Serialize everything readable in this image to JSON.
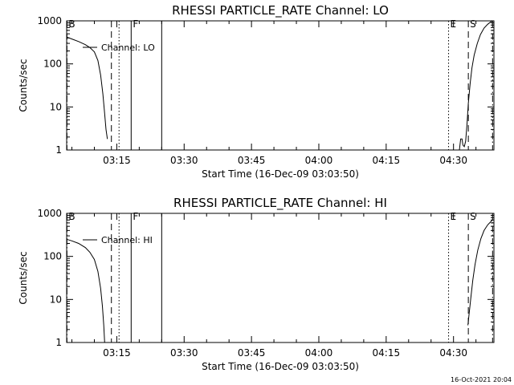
{
  "footer": {
    "timestamp": "16-Oct-2021 20:04"
  },
  "chart_data": [
    {
      "type": "line",
      "title": "RHESSI PARTICLE_RATE Channel: LO",
      "xlabel": "Start Time (16-Dec-09 03:03:50)",
      "ylabel": "Counts/sec",
      "yscale": "log",
      "ylim": [
        1,
        1000
      ],
      "xlim_minutes": [
        3.833,
        99.0
      ],
      "x_ticks": [
        {
          "label": "03:15",
          "minute": 15
        },
        {
          "label": "03:30",
          "minute": 30
        },
        {
          "label": "03:45",
          "minute": 45
        },
        {
          "label": "04:00",
          "minute": 60
        },
        {
          "label": "04:15",
          "minute": 75
        },
        {
          "label": "04:30",
          "minute": 90
        }
      ],
      "y_ticks": [
        {
          "label": "1",
          "value": 1
        },
        {
          "label": "10",
          "value": 10
        },
        {
          "label": "100",
          "value": 100
        },
        {
          "label": "1000",
          "value": 1000
        }
      ],
      "legend": {
        "label": "Channel: LO",
        "placement": "top-left"
      },
      "markers": [
        {
          "label": "B",
          "minute": 3.9,
          "style": "dashdot"
        },
        {
          "label": "",
          "minute": 13.8,
          "style": "dashed"
        },
        {
          "label": "",
          "minute": 15.5,
          "style": "dotted"
        },
        {
          "label": "F",
          "minute": 18.2,
          "style": "solid"
        },
        {
          "label": "",
          "minute": 25.0,
          "style": "solid"
        },
        {
          "label": "E",
          "minute": 88.9,
          "style": "dotted"
        },
        {
          "label": "S",
          "minute": 93.3,
          "style": "dashed"
        },
        {
          "label": "",
          "minute": 98.7,
          "style": "dashdot"
        }
      ],
      "series": [
        {
          "segments": [
            [
              [
                3.83,
                420
              ],
              [
                5.0,
                380
              ],
              [
                6.5,
                330
              ],
              [
                8.0,
                280
              ],
              [
                9.0,
                240
              ],
              [
                10.0,
                190
              ],
              [
                10.8,
                120
              ],
              [
                11.4,
                55
              ],
              [
                11.9,
                20
              ],
              [
                12.3,
                7
              ],
              [
                12.6,
                3
              ],
              [
                12.9,
                1.8
              ]
            ],
            [
              [
                91.3,
                1
              ],
              [
                91.6,
                1.8
              ],
              [
                91.9,
                1.8
              ],
              [
                92.1,
                1.3
              ],
              [
                92.4,
                1.2
              ],
              [
                92.7,
                1.6
              ],
              [
                93.0,
                4
              ],
              [
                93.3,
                12
              ],
              [
                93.7,
                35
              ],
              [
                94.1,
                80
              ],
              [
                94.6,
                160
              ],
              [
                95.3,
                300
              ],
              [
                96.0,
                480
              ],
              [
                96.8,
                680
              ],
              [
                97.6,
                830
              ],
              [
                98.3,
                950
              ],
              [
                98.8,
                1000
              ]
            ]
          ]
        }
      ]
    },
    {
      "type": "line",
      "title": "RHESSI PARTICLE_RATE Channel: HI",
      "xlabel": "Start Time (16-Dec-09 03:03:50)",
      "ylabel": "Counts/sec",
      "yscale": "log",
      "ylim": [
        1,
        1000
      ],
      "xlim_minutes": [
        3.833,
        99.0
      ],
      "x_ticks": [
        {
          "label": "03:15",
          "minute": 15
        },
        {
          "label": "03:30",
          "minute": 30
        },
        {
          "label": "03:45",
          "minute": 45
        },
        {
          "label": "04:00",
          "minute": 60
        },
        {
          "label": "04:15",
          "minute": 75
        },
        {
          "label": "04:30",
          "minute": 90
        }
      ],
      "y_ticks": [
        {
          "label": "1",
          "value": 1
        },
        {
          "label": "10",
          "value": 10
        },
        {
          "label": "100",
          "value": 100
        },
        {
          "label": "1000",
          "value": 1000
        }
      ],
      "legend": {
        "label": "Channel: HI",
        "placement": "top-left"
      },
      "markers": [
        {
          "label": "B",
          "minute": 3.9,
          "style": "dashdot"
        },
        {
          "label": "",
          "minute": 13.8,
          "style": "dashed"
        },
        {
          "label": "",
          "minute": 15.5,
          "style": "dotted"
        },
        {
          "label": "F",
          "minute": 18.2,
          "style": "solid"
        },
        {
          "label": "",
          "minute": 25.0,
          "style": "solid"
        },
        {
          "label": "E",
          "minute": 88.9,
          "style": "dotted"
        },
        {
          "label": "S",
          "minute": 93.3,
          "style": "dashed"
        },
        {
          "label": "",
          "minute": 98.7,
          "style": "dashdot"
        }
      ],
      "series": [
        {
          "segments": [
            [
              [
                3.83,
                250
              ],
              [
                5.0,
                230
              ],
              [
                6.5,
                200
              ],
              [
                8.0,
                160
              ],
              [
                9.0,
                125
              ],
              [
                10.0,
                85
              ],
              [
                10.8,
                45
              ],
              [
                11.4,
                18
              ],
              [
                11.8,
                7
              ],
              [
                12.1,
                2.5
              ],
              [
                12.3,
                1
              ]
            ],
            [
              [
                93.2,
                2.5
              ],
              [
                93.5,
                5
              ],
              [
                93.9,
                12
              ],
              [
                94.3,
                28
              ],
              [
                94.8,
                65
              ],
              [
                95.4,
                140
              ],
              [
                96.1,
                260
              ],
              [
                96.8,
                400
              ],
              [
                97.6,
                540
              ],
              [
                98.3,
                640
              ],
              [
                98.7,
                700
              ]
            ]
          ]
        }
      ]
    }
  ]
}
